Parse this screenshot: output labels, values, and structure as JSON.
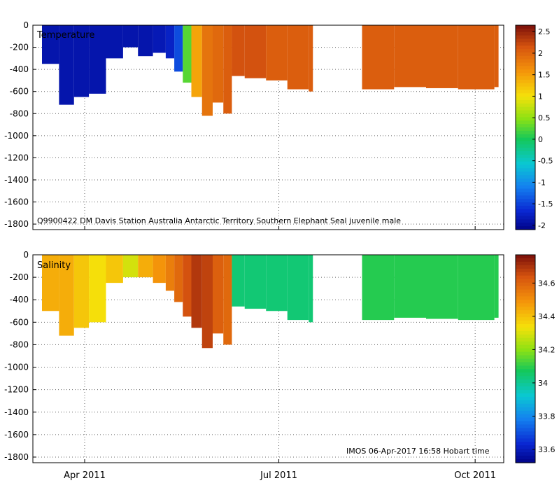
{
  "chart_data": [
    {
      "type": "heatmap",
      "title": "Temperature",
      "annotation": "Q9900422 DM Davis Station Australia Antarctic Territory Southern Elephant Seal juvenile male",
      "yticks": [
        "0",
        "-200",
        "-400",
        "-600",
        "-800",
        "-1000",
        "-1200",
        "-1400",
        "-1600",
        "-1800"
      ],
      "ylim": [
        -1850,
        0
      ],
      "colorbar": {
        "ticks": [
          "2.5",
          "2",
          "1.5",
          "1",
          "0.5",
          "0",
          "-0.5",
          "-1",
          "-1.5",
          "-2"
        ],
        "range": [
          -2.1,
          2.65
        ]
      },
      "profiles": [
        {
          "day": 0,
          "depth_max": 350,
          "value": -1.85
        },
        {
          "day": 8,
          "depth_max": 720,
          "value": -1.85
        },
        {
          "day": 15,
          "depth_max": 650,
          "value": -1.85
        },
        {
          "day": 22,
          "depth_max": 620,
          "value": -1.85
        },
        {
          "day": 30,
          "depth_max": 300,
          "value": -1.85
        },
        {
          "day": 38,
          "depth_max": 200,
          "value": -1.85
        },
        {
          "day": 45,
          "depth_max": 280,
          "value": -1.85
        },
        {
          "day": 52,
          "depth_max": 250,
          "value": -1.8
        },
        {
          "day": 58,
          "depth_max": 300,
          "value": -1.7
        },
        {
          "day": 62,
          "depth_max": 420,
          "value": -1.4
        },
        {
          "day": 66,
          "depth_max": 520,
          "value": 0.3
        },
        {
          "day": 70,
          "depth_max": 650,
          "value": 1.5
        },
        {
          "day": 75,
          "depth_max": 820,
          "value": 1.9
        },
        {
          "day": 80,
          "depth_max": 700,
          "value": 2.0
        },
        {
          "day": 85,
          "depth_max": 800,
          "value": 2.1
        },
        {
          "day": 89,
          "depth_max": 460,
          "value": 2.2
        },
        {
          "day": 95,
          "depth_max": 480,
          "value": 2.2
        },
        {
          "day": 105,
          "depth_max": 500,
          "value": 2.1
        },
        {
          "day": 115,
          "depth_max": 580,
          "value": 2.1
        },
        {
          "day": 125,
          "depth_max": 600,
          "value": 2.1
        },
        {
          "day": 150,
          "depth_max": 580,
          "value": 2.1
        },
        {
          "day": 165,
          "depth_max": 560,
          "value": 2.1
        },
        {
          "day": 180,
          "depth_max": 570,
          "value": 2.1
        },
        {
          "day": 195,
          "depth_max": 580,
          "value": 2.1
        },
        {
          "day": 212,
          "depth_max": 560,
          "value": 2.1
        }
      ]
    },
    {
      "type": "heatmap",
      "title": "Salinity",
      "annotation": "IMOS 06-Apr-2017 16:58 Hobart time",
      "yticks": [
        "0",
        "-200",
        "-400",
        "-600",
        "-800",
        "-1000",
        "-1200",
        "-1400",
        "-1600",
        "-1800"
      ],
      "ylim": [
        -1850,
        0
      ],
      "xticks": [
        "Apr 2011",
        "Jul 2011",
        "Oct 2011"
      ],
      "colorbar": {
        "ticks": [
          "34.6",
          "34.4",
          "34.2",
          "34",
          "33.8",
          "33.6"
        ],
        "range": [
          33.52,
          34.77
        ]
      },
      "profiles": [
        {
          "day": 0,
          "depth_max": 500,
          "value": 34.45
        },
        {
          "day": 8,
          "depth_max": 720,
          "value": 34.45
        },
        {
          "day": 15,
          "depth_max": 650,
          "value": 34.4
        },
        {
          "day": 22,
          "depth_max": 600,
          "value": 34.35
        },
        {
          "day": 30,
          "depth_max": 250,
          "value": 34.4
        },
        {
          "day": 38,
          "depth_max": 200,
          "value": 34.3
        },
        {
          "day": 45,
          "depth_max": 200,
          "value": 34.45
        },
        {
          "day": 52,
          "depth_max": 250,
          "value": 34.5
        },
        {
          "day": 58,
          "depth_max": 320,
          "value": 34.55
        },
        {
          "day": 62,
          "depth_max": 420,
          "value": 34.6
        },
        {
          "day": 66,
          "depth_max": 550,
          "value": 34.65
        },
        {
          "day": 70,
          "depth_max": 650,
          "value": 34.7
        },
        {
          "day": 75,
          "depth_max": 830,
          "value": 34.68
        },
        {
          "day": 80,
          "depth_max": 700,
          "value": 34.62
        },
        {
          "day": 85,
          "depth_max": 800,
          "value": 34.6
        },
        {
          "day": 89,
          "depth_max": 460,
          "value": 34.05
        },
        {
          "day": 95,
          "depth_max": 480,
          "value": 34.05
        },
        {
          "day": 105,
          "depth_max": 500,
          "value": 34.05
        },
        {
          "day": 115,
          "depth_max": 580,
          "value": 34.05
        },
        {
          "day": 125,
          "depth_max": 600,
          "value": 34.05
        },
        {
          "day": 150,
          "depth_max": 580,
          "value": 34.1
        },
        {
          "day": 165,
          "depth_max": 560,
          "value": 34.1
        },
        {
          "day": 180,
          "depth_max": 570,
          "value": 34.1
        },
        {
          "day": 195,
          "depth_max": 580,
          "value": 34.1
        },
        {
          "day": 212,
          "depth_max": 560,
          "value": 34.1
        }
      ]
    }
  ]
}
